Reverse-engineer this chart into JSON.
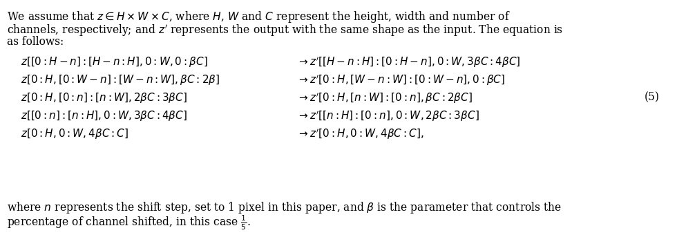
{
  "figsize": [
    9.8,
    3.56
  ],
  "dpi": 100,
  "background_color": "#ffffff",
  "text_color": "#000000",
  "font_size_body": 11.2,
  "font_size_eq": 11.0,
  "intro_line1": "We assume that $z \\in H \\times W \\times C$, where $H$, $W$ and $C$ represent the height, width and number of",
  "intro_line2": "channels, respectively; and $z'$ represents the output with the same shape as the input. The equation is",
  "intro_line3": "as follows:",
  "eq_number": "(5)",
  "left_equations": [
    "$z[[0:H-n]:[H-n:H],0:W,0:\\beta C]$",
    "$z[0:H,[0:W-n]:[W-n:W],\\beta C:2\\beta]$",
    "$z[0:H,[0:n]:[n:W],2\\beta C:3\\beta C]$",
    "$z[[0:n]:[n:H],0:W,3\\beta C:4\\beta C]$",
    "$z[0:H,0:W,4\\beta C:C]$"
  ],
  "right_equations": [
    "$\\rightarrow z'[[H-n:H]:[0:H-n],0:W,3\\beta C:4\\beta C]$",
    "$\\rightarrow z'[0:H,[W-n:W]:[0:W-n],0:\\beta C]$",
    "$\\rightarrow z'[0:H,[n:W]:[0:n],\\beta C:2\\beta C]$",
    "$\\rightarrow z'[[n:H]:[0:n],0:W,2\\beta C:3\\beta C]$",
    "$\\rightarrow z'[0:H,0:W,4\\beta C:C],$"
  ],
  "footer_line1": "where $n$ represents the shift step, set to 1 pixel in this paper, and $\\beta$ is the parameter that controls the",
  "footer_line2": "percentage of channel shifted, in this case $\\frac{1}{5}$."
}
